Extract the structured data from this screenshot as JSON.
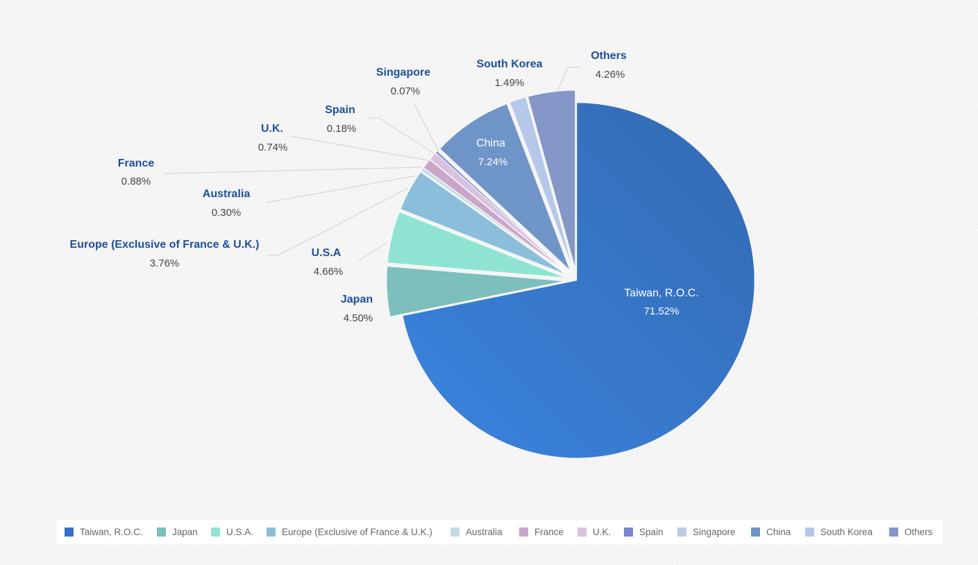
{
  "chart_data": {
    "type": "pie",
    "slices": [
      {
        "label": "Taiwan, R.O.C.",
        "legend": "Taiwan, R.O.C.",
        "display": "71.52%",
        "value": 71.52,
        "color": "#3572c6",
        "exploded": false
      },
      {
        "label": "Japan",
        "legend": "Japan",
        "display": "4.50%",
        "value": 4.5,
        "color": "#7dbfbd",
        "exploded": true
      },
      {
        "label": "U.S.A",
        "legend": "U.S.A.",
        "display": "4.66%",
        "value": 4.66,
        "color": "#8fe3d2",
        "exploded": true
      },
      {
        "label": "Europe (Exclusive of France & U.K.)",
        "legend": "Europe (Exclusive of France & U.K.)",
        "display": "3.76%",
        "value": 3.76,
        "color": "#8bbedb",
        "exploded": true
      },
      {
        "label": "Australia",
        "legend": "Australia",
        "display": "0.30%",
        "value": 0.3,
        "color": "#c4dbe6",
        "exploded": true
      },
      {
        "label": "France",
        "legend": "France",
        "display": "0.88%",
        "value": 0.88,
        "color": "#c9a6c8",
        "exploded": true
      },
      {
        "label": "U.K.",
        "legend": "U.K.",
        "display": "0.74%",
        "value": 0.74,
        "color": "#d7c3df",
        "exploded": true
      },
      {
        "label": "Spain",
        "legend": "Spain",
        "display": "0.18%",
        "value": 0.18,
        "color": "#7a86cf",
        "exploded": true
      },
      {
        "label": "Singapore",
        "legend": "Singapore",
        "display": "0.07%",
        "value": 0.07,
        "color": "#bccbe6",
        "exploded": true
      },
      {
        "label": "China",
        "legend": "China",
        "display": "7.24%",
        "value": 7.24,
        "color": "#6f95c8",
        "exploded": true
      },
      {
        "label": "South Korea",
        "legend": "South Korea",
        "display": "1.49%",
        "value": 1.49,
        "color": "#b5c8ea",
        "exploded": true
      },
      {
        "label": "Others",
        "legend": "Others",
        "display": "4.26%",
        "value": 4.26,
        "color": "#8597c8",
        "exploded": true
      }
    ],
    "start_angle": "12 o'clock",
    "direction": "clockwise",
    "legend_position": "bottom"
  }
}
